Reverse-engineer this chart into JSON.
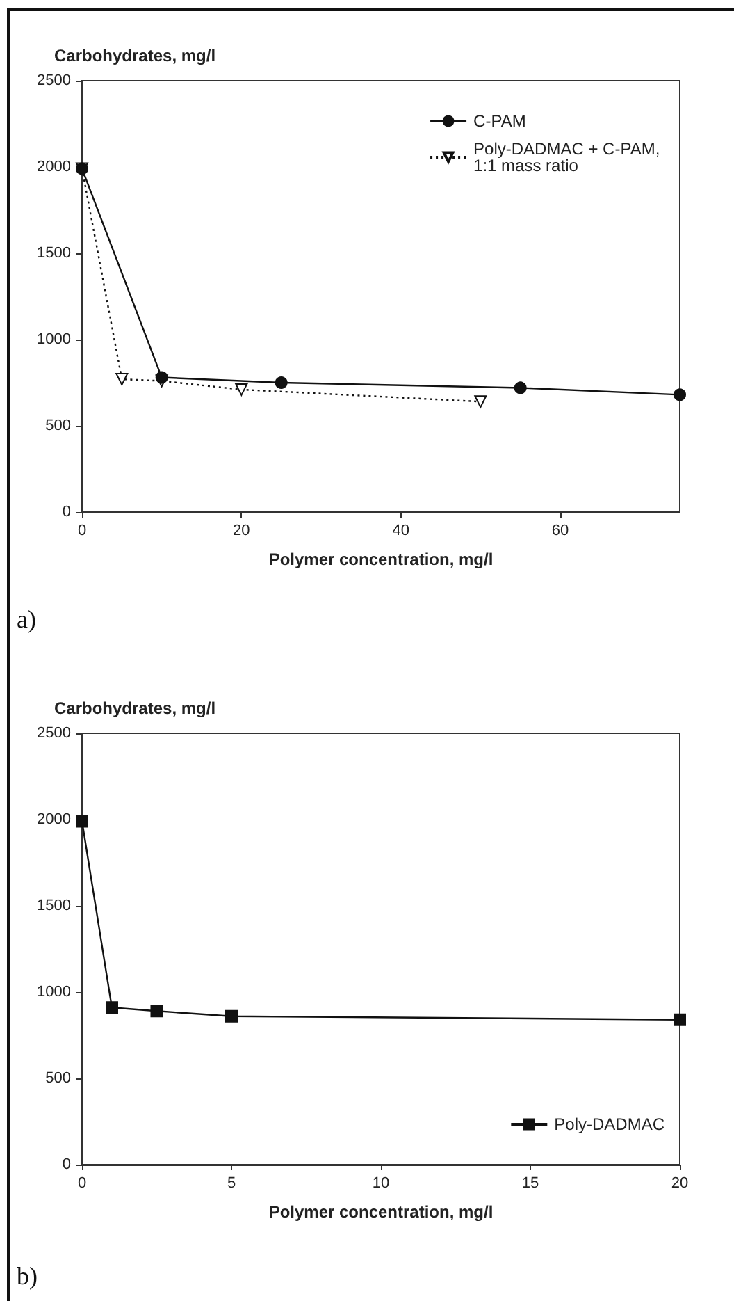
{
  "chart_data": [
    {
      "type": "line",
      "ylabel": "Carbohydrates, mg/l",
      "xlabel": "Polymer concentration, mg/l",
      "annotations": [
        "a)"
      ],
      "xlim": [
        0,
        75
      ],
      "xticks": [
        0,
        20,
        40,
        60
      ],
      "ylim": [
        0,
        2500
      ],
      "yticks": [
        0,
        500,
        1000,
        1500,
        2000,
        2500
      ],
      "grid": false,
      "legend": "top right",
      "series": [
        {
          "name": "C-PAM",
          "color": "#111111",
          "marker": "circle",
          "line_style": "solid",
          "x": [
            0,
            10,
            25,
            55,
            75
          ],
          "values": [
            1990,
            780,
            750,
            720,
            680
          ]
        },
        {
          "name": "Poly-DADMAC + C-PAM, 1:1 mass ratio",
          "color": "#111111",
          "marker": "triangle",
          "line_style": "dotted",
          "x": [
            0,
            5,
            10,
            20,
            50
          ],
          "values": [
            1990,
            770,
            760,
            710,
            640
          ]
        }
      ]
    },
    {
      "type": "line",
      "ylabel": "Carbohydrates, mg/l",
      "xlabel": "Polymer concentration, mg/l",
      "annotations": [
        "b)"
      ],
      "xlim": [
        0,
        20
      ],
      "xticks": [
        0,
        5,
        10,
        15,
        20
      ],
      "ylim": [
        0,
        2500
      ],
      "yticks": [
        0,
        500,
        1000,
        1500,
        2000,
        2500
      ],
      "grid": false,
      "legend": "bottom right",
      "series": [
        {
          "name": "Poly-DADMAC",
          "color": "#111111",
          "marker": "square",
          "line_style": "solid",
          "x": [
            0,
            1,
            2.5,
            5,
            20
          ],
          "values": [
            1990,
            910,
            890,
            860,
            840
          ]
        }
      ]
    }
  ]
}
